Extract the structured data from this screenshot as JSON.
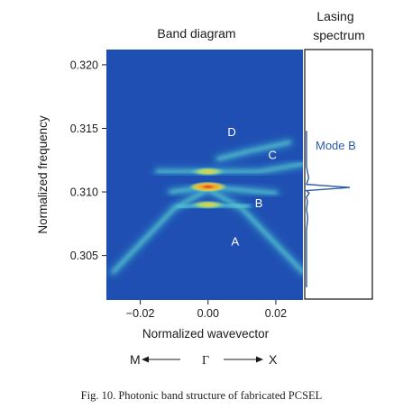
{
  "figure": {
    "band_title": "Band diagram",
    "lasing_title_line1": "Lasing",
    "lasing_title_line2": "spectrum",
    "ylabel": "Normalized frequency",
    "xlabel": "Normalized wavevector",
    "caption": "Fig. 10.  Photonic band structure of fabricated PCSEL",
    "dir_left": "M",
    "dir_center": "Γ",
    "dir_right": "X",
    "mode_label": "Mode B",
    "colors": {
      "background": "#1f4fb2",
      "high": "#d9321f",
      "mid": "#f2d23a",
      "low": "#5fd6c4",
      "spectrum": "#2a5aa8",
      "mode_text": "#2a5aa8"
    }
  },
  "chart_data": [
    {
      "type": "heatmap",
      "title": "Band diagram",
      "xlabel": "Normalized wavevector",
      "ylabel": "Normalized frequency",
      "xlim": [
        -0.03,
        0.028
      ],
      "ylim": [
        0.3015,
        0.3212
      ],
      "xticks": [
        -0.02,
        0.0,
        0.02
      ],
      "xtick_labels": [
        "−0.02",
        "0.00",
        "0.02"
      ],
      "yticks": [
        0.305,
        0.31,
        0.315,
        0.32
      ],
      "ytick_labels": [
        "0.305",
        "0.310",
        "0.315",
        "0.320"
      ],
      "band_labels": [
        {
          "text": "A",
          "x": 0.008,
          "y": 0.3058
        },
        {
          "text": "B",
          "x": 0.015,
          "y": 0.3088
        },
        {
          "text": "C",
          "x": 0.019,
          "y": 0.3126
        },
        {
          "text": "D",
          "x": 0.007,
          "y": 0.3144
        }
      ],
      "bands": [
        {
          "name": "A",
          "points": [
            [
              -0.028,
              0.3037
            ],
            [
              -0.01,
              0.3087
            ],
            [
              0.0,
              0.3102
            ],
            [
              0.01,
              0.3087
            ],
            [
              0.028,
              0.3037
            ]
          ]
        },
        {
          "name": "B",
          "points": [
            [
              -0.009,
              0.3088
            ],
            [
              0.0,
              0.309
            ],
            [
              0.012,
              0.3089
            ]
          ]
        },
        {
          "name": "B upper",
          "points": [
            [
              -0.011,
              0.31
            ],
            [
              0.0,
              0.3104
            ],
            [
              0.02,
              0.3099
            ]
          ]
        },
        {
          "name": "C",
          "points": [
            [
              -0.015,
              0.3116
            ],
            [
              0.0,
              0.3116
            ],
            [
              0.015,
              0.3116
            ],
            [
              0.028,
              0.3122
            ]
          ]
        },
        {
          "name": "D",
          "points": [
            [
              0.003,
              0.3126
            ],
            [
              0.012,
              0.3132
            ],
            [
              0.024,
              0.3139
            ]
          ]
        }
      ],
      "hotspots": [
        {
          "x": 0.0,
          "y": 0.3104,
          "level": "high"
        },
        {
          "x": 0.0,
          "y": 0.3116,
          "level": "mid"
        },
        {
          "x": 0.0,
          "y": 0.309,
          "level": "mid"
        }
      ]
    },
    {
      "type": "line",
      "title": "Lasing spectrum",
      "ylim": [
        0.3015,
        0.3212
      ],
      "annotation": "Mode B",
      "points": [
        [
          0.0,
          0.3025
        ],
        [
          0.0,
          0.307
        ],
        [
          0.03,
          0.308
        ],
        [
          0.0,
          0.3086
        ],
        [
          0.02,
          0.3092
        ],
        [
          0.0,
          0.3096
        ],
        [
          0.06,
          0.3099
        ],
        [
          0.0,
          0.3101
        ],
        [
          1.0,
          0.31035
        ],
        [
          0.0,
          0.3106
        ],
        [
          0.05,
          0.3111
        ],
        [
          0.02,
          0.3116
        ],
        [
          0.0,
          0.312
        ],
        [
          0.0,
          0.3148
        ]
      ]
    }
  ]
}
